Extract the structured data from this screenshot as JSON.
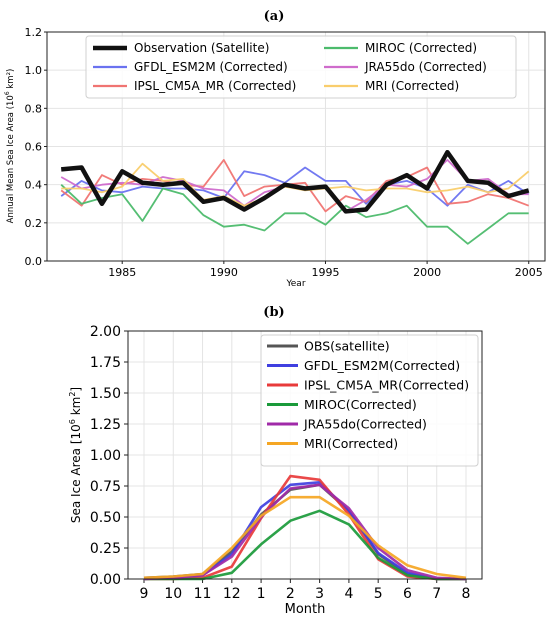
{
  "chart_data": [
    {
      "panel_label": "(a)",
      "type": "line",
      "xlabel": "Year",
      "ylabel_main": "Annual Mean Sea Ice Area (10",
      "ylabel_sup": "6",
      "ylabel_tail": " km²)",
      "xlim": [
        1981.3,
        2005.8
      ],
      "ylim": [
        0.0,
        1.2
      ],
      "xticks": [
        1985,
        1990,
        1995,
        2000,
        2005
      ],
      "yticks": [
        0.0,
        0.2,
        0.4,
        0.6,
        0.8,
        1.0,
        1.2
      ],
      "ytick_labels": [
        "0.0",
        "0.2",
        "0.4",
        "0.6",
        "0.8",
        "1.0",
        "1.2"
      ],
      "grid": true,
      "legend_position": "upper",
      "legend_columns": 2,
      "x": [
        1982,
        1983,
        1984,
        1985,
        1986,
        1987,
        1988,
        1989,
        1990,
        1991,
        1992,
        1993,
        1994,
        1995,
        1996,
        1997,
        1998,
        1999,
        2000,
        2001,
        2002,
        2003,
        2004,
        2005
      ],
      "series": [
        {
          "name": "Observation (Satellite)",
          "color": "#111111",
          "width": 4.5,
          "values": [
            0.48,
            0.49,
            0.3,
            0.47,
            0.41,
            0.4,
            0.41,
            0.31,
            0.33,
            0.27,
            0.33,
            0.4,
            0.38,
            0.39,
            0.26,
            0.27,
            0.4,
            0.45,
            0.38,
            0.57,
            0.42,
            0.41,
            0.34,
            0.37
          ]
        },
        {
          "name": "GFDL_ESM2M (Corrected)",
          "color": "#6a72f0",
          "width": 1.8,
          "values": [
            0.34,
            0.42,
            0.37,
            0.36,
            0.39,
            0.38,
            0.38,
            0.37,
            0.33,
            0.47,
            0.45,
            0.41,
            0.49,
            0.42,
            0.42,
            0.3,
            0.4,
            0.42,
            0.38,
            0.29,
            0.4,
            0.36,
            0.42,
            0.35
          ]
        },
        {
          "name": "IPSL_CM5A_MR (Corrected)",
          "color": "#f07472",
          "width": 1.8,
          "values": [
            0.37,
            0.29,
            0.45,
            0.4,
            0.43,
            0.42,
            0.4,
            0.39,
            0.53,
            0.34,
            0.39,
            0.4,
            0.41,
            0.26,
            0.34,
            0.31,
            0.42,
            0.44,
            0.49,
            0.3,
            0.31,
            0.35,
            0.33,
            0.29
          ]
        },
        {
          "name": "MIROC (Corrected)",
          "color": "#4cbb6c",
          "width": 1.8,
          "values": [
            0.4,
            0.3,
            0.33,
            0.35,
            0.21,
            0.38,
            0.35,
            0.24,
            0.18,
            0.19,
            0.16,
            0.25,
            0.25,
            0.19,
            0.29,
            0.23,
            0.25,
            0.29,
            0.18,
            0.18,
            0.09,
            0.17,
            0.25,
            0.25
          ]
        },
        {
          "name": "JRA55do (Corrected)",
          "color": "#cf6ccc",
          "width": 1.8,
          "values": [
            0.44,
            0.38,
            0.4,
            0.41,
            0.4,
            0.44,
            0.42,
            0.38,
            0.37,
            0.29,
            0.36,
            0.39,
            0.38,
            0.39,
            0.26,
            0.32,
            0.4,
            0.39,
            0.43,
            0.53,
            0.42,
            0.43,
            0.35,
            0.35
          ]
        },
        {
          "name": "MRI (Corrected)",
          "color": "#f9cd6c",
          "width": 1.8,
          "values": [
            0.38,
            0.38,
            0.36,
            0.39,
            0.51,
            0.42,
            0.43,
            0.32,
            0.34,
            0.29,
            0.33,
            0.39,
            0.37,
            0.38,
            0.39,
            0.37,
            0.38,
            0.38,
            0.36,
            0.37,
            0.39,
            0.36,
            0.38,
            0.47
          ]
        }
      ]
    },
    {
      "panel_label": "(b)",
      "type": "line",
      "xlabel": "Month",
      "ylabel_main": "Sea Ice Area [10",
      "ylabel_sup": "6",
      "ylabel_tail": " km",
      "ylabel_sup2": "2",
      "ylabel_end": "]",
      "categories": [
        "9",
        "10",
        "11",
        "12",
        "1",
        "2",
        "3",
        "4",
        "5",
        "6",
        "7",
        "8"
      ],
      "ylim": [
        0.0,
        2.0
      ],
      "yticks": [
        0.0,
        0.25,
        0.5,
        0.75,
        1.0,
        1.25,
        1.5,
        1.75,
        2.0
      ],
      "ytick_labels": [
        "0.00",
        "0.25",
        "0.50",
        "0.75",
        "1.00",
        "1.25",
        "1.50",
        "1.75",
        "2.00"
      ],
      "grid": true,
      "legend_position": "upper-right",
      "legend_columns": 1,
      "series": [
        {
          "name": "OBS(satellite)",
          "color": "#555555",
          "width": 2.6,
          "values": [
            0.01,
            0.02,
            0.04,
            0.22,
            0.52,
            0.72,
            0.76,
            0.55,
            0.2,
            0.04,
            0.0,
            0.0
          ]
        },
        {
          "name": "GFDL_ESM2M(Corrected)",
          "color": "#3f3fe0",
          "width": 2.6,
          "values": [
            0.0,
            0.01,
            0.03,
            0.2,
            0.58,
            0.76,
            0.78,
            0.55,
            0.21,
            0.05,
            0.0,
            0.0
          ]
        },
        {
          "name": "IPSL_CM5A_MR(Corrected)",
          "color": "#e83a3a",
          "width": 2.6,
          "values": [
            0.0,
            0.0,
            0.01,
            0.1,
            0.49,
            0.83,
            0.8,
            0.52,
            0.16,
            0.02,
            0.0,
            0.0
          ]
        },
        {
          "name": "MIROC(Corrected)",
          "color": "#1a9a3a",
          "width": 2.6,
          "values": [
            0.0,
            0.0,
            0.0,
            0.05,
            0.28,
            0.47,
            0.55,
            0.44,
            0.17,
            0.03,
            0.0,
            0.0
          ]
        },
        {
          "name": "JRA55do(Corrected)",
          "color": "#a02aa8",
          "width": 2.6,
          "values": [
            0.0,
            0.01,
            0.03,
            0.18,
            0.5,
            0.73,
            0.76,
            0.57,
            0.25,
            0.07,
            0.01,
            0.0
          ]
        },
        {
          "name": "MRI(Corrected)",
          "color": "#f5a623",
          "width": 2.6,
          "values": [
            0.01,
            0.02,
            0.04,
            0.25,
            0.51,
            0.66,
            0.66,
            0.51,
            0.27,
            0.11,
            0.04,
            0.01
          ]
        }
      ]
    }
  ]
}
